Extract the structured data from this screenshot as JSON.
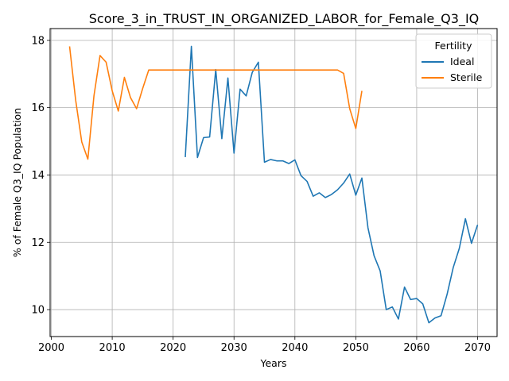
{
  "chart_data": {
    "type": "line",
    "title": "Score_3_in_TRUST_IN_ORGANIZED_LABOR_for_Female_Q3_IQ",
    "xlabel": "Years",
    "ylabel": "% of Female Q3_IQ Population",
    "xlim": [
      1999.8,
      2073.2
    ],
    "ylim": [
      9.2,
      18.35
    ],
    "xticks": [
      2000,
      2010,
      2020,
      2030,
      2040,
      2050,
      2060,
      2070
    ],
    "yticks": [
      10,
      12,
      14,
      16,
      18
    ],
    "grid": true,
    "legend": {
      "title": "Fertility",
      "position": "top-right"
    },
    "series": [
      {
        "name": "Ideal",
        "color": "#1f77b4",
        "x": [
          2022,
          2023,
          2024,
          2025,
          2026,
          2027,
          2028,
          2029,
          2030,
          2031,
          2032,
          2033,
          2034,
          2035,
          2036,
          2037,
          2038,
          2039,
          2040,
          2041,
          2042,
          2043,
          2044,
          2045,
          2046,
          2047,
          2048,
          2049,
          2050,
          2051,
          2052,
          2053,
          2054,
          2055,
          2056,
          2057,
          2058,
          2059,
          2060,
          2061,
          2062,
          2063,
          2064,
          2065,
          2066,
          2067,
          2068,
          2069,
          2070
        ],
        "y": [
          14.53,
          17.82,
          14.52,
          15.11,
          15.13,
          17.13,
          15.08,
          16.88,
          14.65,
          16.55,
          16.35,
          17.05,
          17.35,
          14.38,
          14.46,
          14.42,
          14.42,
          14.34,
          14.45,
          13.98,
          13.81,
          13.37,
          13.47,
          13.33,
          13.42,
          13.56,
          13.76,
          14.03,
          13.4,
          13.91,
          12.43,
          11.6,
          11.15,
          10.0,
          10.08,
          9.72,
          10.67,
          10.3,
          10.33,
          10.17,
          9.61,
          9.75,
          9.82,
          10.46,
          11.25,
          11.82,
          12.7,
          11.97,
          12.52
        ]
      },
      {
        "name": "Sterile",
        "color": "#ff7f0e",
        "x": [
          2003,
          2004,
          2005,
          2006,
          2007,
          2008,
          2009,
          2010,
          2011,
          2012,
          2013,
          2014,
          2015,
          2016,
          2017,
          2018,
          2019,
          2020,
          2021,
          2022,
          2023,
          2024,
          2025,
          2026,
          2027,
          2028,
          2029,
          2030,
          2031,
          2032,
          2033,
          2034,
          2035,
          2036,
          2037,
          2038,
          2039,
          2040,
          2041,
          2042,
          2043,
          2044,
          2045,
          2046,
          2047,
          2048,
          2049,
          2050,
          2051
        ],
        "y": [
          17.82,
          16.22,
          14.98,
          14.47,
          16.35,
          17.55,
          17.35,
          16.5,
          15.9,
          16.9,
          16.3,
          15.97,
          16.57,
          17.12,
          17.12,
          17.12,
          17.12,
          17.12,
          17.12,
          17.12,
          17.12,
          17.12,
          17.12,
          17.12,
          17.12,
          17.12,
          17.12,
          17.12,
          17.12,
          17.12,
          17.12,
          17.12,
          17.12,
          17.12,
          17.12,
          17.12,
          17.12,
          17.12,
          17.12,
          17.12,
          17.12,
          17.12,
          17.12,
          17.12,
          17.12,
          17.02,
          15.97,
          15.38,
          16.5
        ]
      }
    ]
  }
}
